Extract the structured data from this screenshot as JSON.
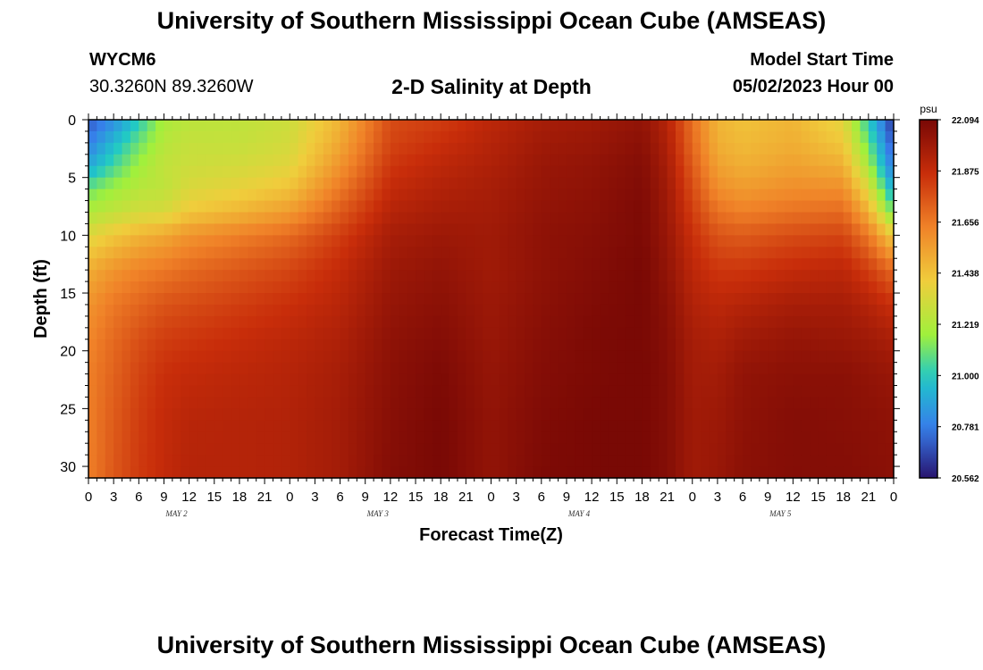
{
  "header": {
    "title": "University of Southern Mississippi Ocean Cube (AMSEAS)",
    "station_id": "WYCM6",
    "station_coords": "30.3260N  89.3260W",
    "subtitle": "2-D Salinity at Depth",
    "start_label": "Model Start Time",
    "start_value": "05/02/2023 Hour 00"
  },
  "footer": {
    "title": "University of Southern Mississippi Ocean Cube (AMSEAS)"
  },
  "chart_data": {
    "type": "heatmap",
    "title": "2-D Salinity at Depth",
    "xlabel": "Forecast Time(Z)",
    "ylabel": "Depth (ft)",
    "x_range_hours": [
      0,
      96
    ],
    "y_range_ft": [
      0,
      31
    ],
    "y_inverted": true,
    "y_ticks": [
      "0",
      "5",
      "10",
      "15",
      "20",
      "25",
      "30"
    ],
    "x_tick_labels": [
      "0",
      "3",
      "6",
      "9",
      "12",
      "15",
      "18",
      "21",
      "0",
      "3",
      "6",
      "9",
      "12",
      "15",
      "18",
      "21",
      "0",
      "3",
      "6",
      "9",
      "12",
      "15",
      "18",
      "21",
      "0",
      "3",
      "6",
      "9",
      "12",
      "15",
      "18",
      "21",
      "0"
    ],
    "day_labels": [
      "MAY 2",
      "MAY 3",
      "MAY 4",
      "MAY 5"
    ],
    "colorbar": {
      "unit": "psu",
      "min": 20.562,
      "max": 22.094,
      "ticks": [
        "22.094",
        "21.875",
        "21.656",
        "21.438",
        "21.219",
        "21.000",
        "20.781",
        "20.562"
      ]
    },
    "depth_levels_ft": [
      0,
      2,
      4,
      6,
      8,
      10,
      13,
      16,
      19,
      22,
      26,
      31
    ],
    "salinity_columns": [
      {
        "hour": 0,
        "values": [
          20.7,
          20.78,
          20.9,
          21.1,
          21.22,
          21.35,
          21.5,
          21.58,
          21.62,
          21.64,
          21.64,
          21.64
        ]
      },
      {
        "hour": 3,
        "values": [
          20.82,
          20.95,
          21.05,
          21.18,
          21.27,
          21.42,
          21.58,
          21.66,
          21.7,
          21.72,
          21.74,
          21.75
        ]
      },
      {
        "hour": 6,
        "values": [
          21.0,
          21.1,
          21.18,
          21.24,
          21.32,
          21.48,
          21.63,
          21.71,
          21.77,
          21.8,
          21.82,
          21.83
        ]
      },
      {
        "hour": 9,
        "values": [
          21.2,
          21.24,
          21.27,
          21.26,
          21.33,
          21.52,
          21.66,
          21.76,
          21.82,
          21.86,
          21.88,
          21.88
        ]
      },
      {
        "hour": 12,
        "values": [
          21.25,
          21.28,
          21.3,
          21.34,
          21.42,
          21.58,
          21.7,
          21.78,
          21.84,
          21.88,
          21.91,
          21.92
        ]
      },
      {
        "hour": 18,
        "values": [
          21.26,
          21.28,
          21.32,
          21.38,
          21.48,
          21.64,
          21.75,
          21.82,
          21.87,
          21.9,
          21.92,
          21.92
        ]
      },
      {
        "hour": 24,
        "values": [
          21.3,
          21.32,
          21.36,
          21.44,
          21.56,
          21.7,
          21.8,
          21.86,
          21.9,
          21.92,
          21.93,
          21.93
        ]
      },
      {
        "hour": 30,
        "values": [
          21.48,
          21.52,
          21.58,
          21.66,
          21.74,
          21.82,
          21.88,
          21.91,
          21.94,
          21.96,
          21.97,
          21.97
        ]
      },
      {
        "hour": 36,
        "values": [
          21.78,
          21.8,
          21.84,
          21.88,
          21.92,
          21.96,
          21.99,
          22.01,
          22.03,
          22.04,
          22.05,
          22.06
        ]
      },
      {
        "hour": 42,
        "values": [
          21.82,
          21.86,
          21.9,
          21.93,
          21.96,
          21.99,
          22.02,
          22.04,
          22.06,
          22.08,
          22.09,
          22.09
        ]
      },
      {
        "hour": 48,
        "values": [
          21.9,
          21.92,
          21.94,
          21.96,
          21.97,
          21.98,
          21.98,
          21.99,
          22.0,
          22.01,
          22.02,
          22.02
        ]
      },
      {
        "hour": 54,
        "values": [
          21.96,
          21.98,
          22.0,
          22.01,
          22.02,
          22.03,
          22.03,
          22.04,
          22.05,
          22.06,
          22.07,
          22.08
        ]
      },
      {
        "hour": 60,
        "values": [
          21.98,
          22.0,
          22.02,
          22.03,
          22.04,
          22.05,
          22.06,
          22.07,
          22.08,
          22.08,
          22.09,
          22.09
        ]
      },
      {
        "hour": 66,
        "values": [
          22.02,
          22.04,
          22.06,
          22.07,
          22.08,
          22.08,
          22.09,
          22.09,
          22.09,
          22.09,
          22.09,
          22.09
        ]
      },
      {
        "hour": 69,
        "values": [
          21.92,
          21.94,
          21.96,
          21.98,
          21.99,
          22.0,
          22.02,
          22.04,
          22.05,
          22.06,
          22.06,
          22.06
        ]
      },
      {
        "hour": 72,
        "values": [
          21.68,
          21.7,
          21.74,
          21.78,
          21.82,
          21.86,
          21.9,
          21.93,
          21.96,
          21.97,
          21.98,
          21.98
        ]
      },
      {
        "hour": 75,
        "values": [
          21.48,
          21.5,
          21.54,
          21.6,
          21.68,
          21.76,
          21.84,
          21.9,
          21.94,
          21.97,
          21.99,
          22.0
        ]
      },
      {
        "hour": 78,
        "values": [
          21.44,
          21.46,
          21.5,
          21.56,
          21.64,
          21.74,
          21.84,
          21.92,
          21.98,
          22.02,
          22.03,
          22.04
        ]
      },
      {
        "hour": 84,
        "values": [
          21.48,
          21.5,
          21.54,
          21.6,
          21.68,
          21.78,
          21.88,
          21.96,
          22.01,
          22.04,
          22.06,
          22.06
        ]
      },
      {
        "hour": 90,
        "values": [
          21.36,
          21.42,
          21.5,
          21.6,
          21.7,
          21.8,
          21.9,
          21.96,
          22.0,
          22.04,
          22.05,
          22.06
        ]
      },
      {
        "hour": 93,
        "values": [
          21.0,
          21.1,
          21.2,
          21.35,
          21.5,
          21.66,
          21.82,
          21.92,
          21.98,
          22.02,
          22.04,
          22.05
        ]
      },
      {
        "hour": 96,
        "values": [
          20.62,
          20.68,
          20.76,
          20.9,
          21.1,
          21.4,
          21.7,
          21.86,
          21.95,
          22.0,
          22.03,
          22.04
        ]
      }
    ]
  }
}
